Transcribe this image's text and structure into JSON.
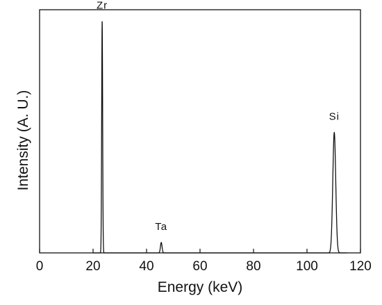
{
  "chart_data": {
    "type": "line",
    "title": "",
    "xlabel": "Energy (keV)",
    "ylabel": "Intensity (A. U.)",
    "xlim": [
      0,
      120
    ],
    "ylim": [
      0,
      1.05
    ],
    "x_ticks": [
      0,
      20,
      40,
      60,
      80,
      100,
      120
    ],
    "x_tick_labels": [
      "0",
      "20",
      "40",
      "60",
      "80",
      "100",
      "120"
    ],
    "y_ticks_labeled": false,
    "grid": false,
    "legend": "none",
    "series": [
      {
        "color": "#111111",
        "peaks": [
          {
            "label": "Zr",
            "x": 23.4,
            "height": 1.0,
            "width": 0.18
          },
          {
            "label": "Ta",
            "x": 45.5,
            "height": 0.045,
            "width": 0.3
          },
          {
            "label": "Si",
            "x": 110.2,
            "height": 0.52,
            "width": 0.55
          }
        ]
      }
    ],
    "annotations": [
      {
        "text": "Zr",
        "x": 23.4
      },
      {
        "text": "Ta",
        "x": 45.5
      },
      {
        "text": "Si",
        "x": 110.2
      }
    ]
  }
}
